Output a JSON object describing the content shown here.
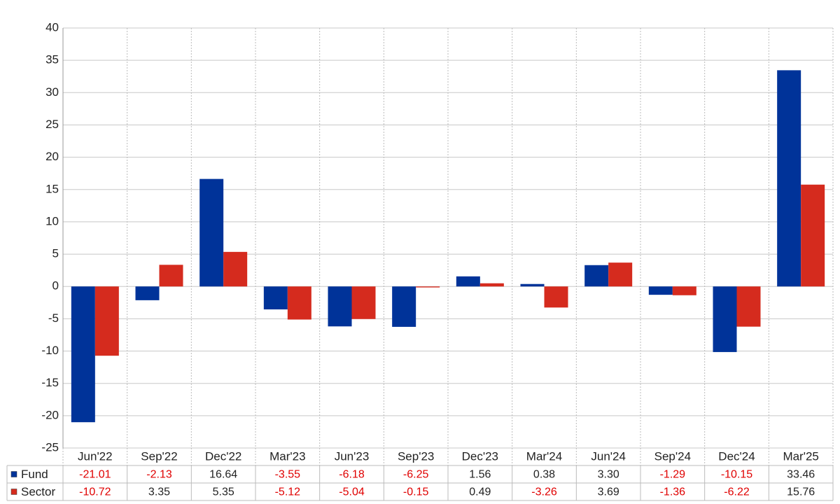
{
  "chart_data": {
    "type": "bar",
    "categories": [
      "Jun'22",
      "Sep'22",
      "Dec'22",
      "Mar'23",
      "Jun'23",
      "Sep'23",
      "Dec'23",
      "Mar'24",
      "Jun'24",
      "Sep'24",
      "Dec'24",
      "Mar'25"
    ],
    "series": [
      {
        "name": "Fund",
        "color": "#003399",
        "values": [
          -21.01,
          -2.13,
          16.64,
          -3.55,
          -6.18,
          -6.25,
          1.56,
          0.38,
          3.3,
          -1.29,
          -10.15,
          33.46
        ],
        "value_labels": [
          "-21.01",
          "-2.13",
          "16.64",
          "-3.55",
          "-6.18",
          "-6.25",
          "1.56",
          "0.38",
          "3.30",
          "-1.29",
          "-10.15",
          "33.46"
        ]
      },
      {
        "name": "Sector",
        "color": "#d52b1e",
        "values": [
          -10.72,
          3.35,
          5.35,
          -5.12,
          -5.04,
          -0.15,
          0.49,
          -3.26,
          3.69,
          -1.36,
          -6.22,
          15.76
        ],
        "value_labels": [
          "-10.72",
          "3.35",
          "5.35",
          "-5.12",
          "-5.04",
          "-0.15",
          "0.49",
          "-3.26",
          "3.69",
          "-1.36",
          "-6.22",
          "15.76"
        ]
      }
    ],
    "ylim": [
      -25,
      40
    ],
    "yticks": [
      -25,
      -20,
      -15,
      -10,
      -5,
      0,
      5,
      10,
      15,
      20,
      25,
      30,
      35,
      40
    ],
    "grid": true,
    "negative_label_color": "#e00000"
  }
}
